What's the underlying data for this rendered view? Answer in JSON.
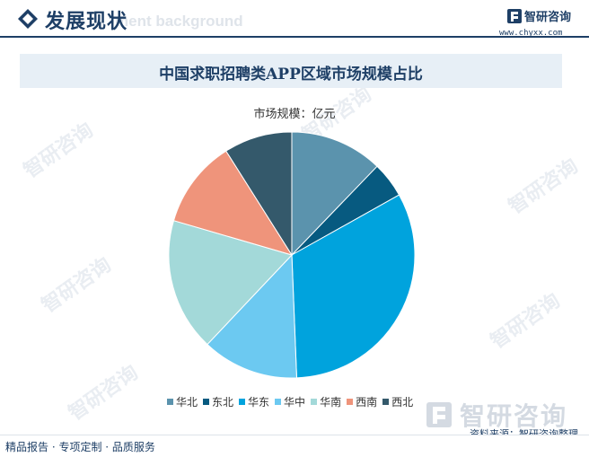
{
  "header": {
    "title": "发展现状",
    "ghost_text": "ment background",
    "brand_name": "智研咨询",
    "brand_url": "www.chyxx.com"
  },
  "chart_data": {
    "type": "pie",
    "title": "中国求职招聘类APP区域市场规模占比",
    "unit_label": "市场规模：亿元",
    "legend_position": "bottom",
    "categories": [
      "华北",
      "东北",
      "华东",
      "华中",
      "华南",
      "西南",
      "西北"
    ],
    "values": [
      12.5,
      4.8,
      33.3,
      13.0,
      17.9,
      11.8,
      9.2
    ],
    "colors": [
      "#5b93ad",
      "#075a80",
      "#00a3dd",
      "#6cc9f1",
      "#a3d9d9",
      "#ef947b",
      "#34596b"
    ]
  },
  "watermark": {
    "text": "智研咨询",
    "big_text": "智研咨询"
  },
  "source_label": "资料来源：智研咨询整理",
  "footer_label": "精品报告 · 专项定制 · 品质服务"
}
